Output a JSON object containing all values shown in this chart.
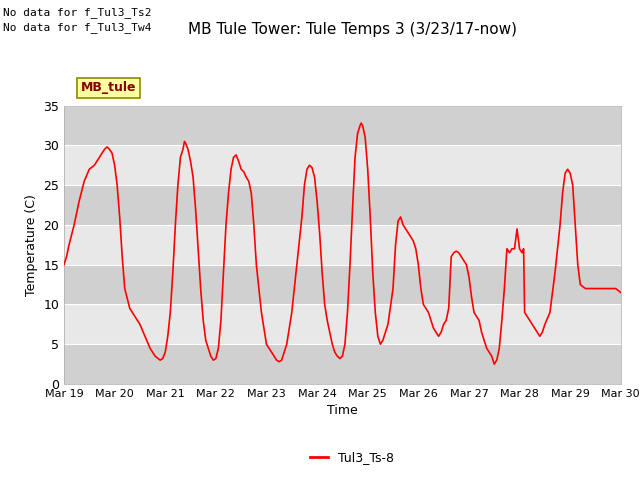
{
  "title": "MB Tule Tower: Tule Temps 3 (3/23/17-now)",
  "xlabel": "Time",
  "ylabel": "Temperature (C)",
  "no_data_text": [
    "No data for f_Tul3_Ts2",
    "No data for f_Tul3_Tw4"
  ],
  "legend_box_label": "MB_tule",
  "legend_line_label": "Tul3_Ts-8",
  "line_color": "#ff0000",
  "background_color": "#ffffff",
  "plot_bg_color": "#e8e8e8",
  "band_color": "#d0d0d0",
  "ylim": [
    0,
    35
  ],
  "yticks": [
    0,
    5,
    10,
    15,
    20,
    25,
    30,
    35
  ],
  "x_start": 19,
  "x_end": 30,
  "xtick_positions": [
    19,
    20,
    21,
    22,
    23,
    24,
    25,
    26,
    27,
    28,
    29,
    30
  ],
  "xtick_labels": [
    "Mar 19",
    "Mar 20",
    "Mar 21",
    "Mar 22",
    "Mar 23",
    "Mar 24",
    "Mar 25",
    "Mar 26",
    "Mar 27",
    "Mar 28",
    "Mar 29",
    "Mar 30"
  ],
  "time_series": [
    [
      19.0,
      15.0
    ],
    [
      19.05,
      16.0
    ],
    [
      19.1,
      17.5
    ],
    [
      19.2,
      20.0
    ],
    [
      19.3,
      23.0
    ],
    [
      19.4,
      25.5
    ],
    [
      19.5,
      27.0
    ],
    [
      19.6,
      27.5
    ],
    [
      19.65,
      28.0
    ],
    [
      19.7,
      28.5
    ],
    [
      19.75,
      29.0
    ],
    [
      19.8,
      29.5
    ],
    [
      19.85,
      29.8
    ],
    [
      19.9,
      29.5
    ],
    [
      19.95,
      29.0
    ],
    [
      20.0,
      27.5
    ],
    [
      20.05,
      25.0
    ],
    [
      20.1,
      21.0
    ],
    [
      20.15,
      16.0
    ],
    [
      20.2,
      12.0
    ],
    [
      20.3,
      9.5
    ],
    [
      20.4,
      8.5
    ],
    [
      20.5,
      7.5
    ],
    [
      20.6,
      6.0
    ],
    [
      20.7,
      4.5
    ],
    [
      20.8,
      3.5
    ],
    [
      20.9,
      3.0
    ],
    [
      20.95,
      3.2
    ],
    [
      21.0,
      4.0
    ],
    [
      21.05,
      6.0
    ],
    [
      21.1,
      9.0
    ],
    [
      21.15,
      14.0
    ],
    [
      21.2,
      20.0
    ],
    [
      21.25,
      25.0
    ],
    [
      21.3,
      28.5
    ],
    [
      21.35,
      29.5
    ],
    [
      21.38,
      30.5
    ],
    [
      21.4,
      30.3
    ],
    [
      21.45,
      29.5
    ],
    [
      21.5,
      28.0
    ],
    [
      21.55,
      26.0
    ],
    [
      21.6,
      22.0
    ],
    [
      21.65,
      17.0
    ],
    [
      21.7,
      12.0
    ],
    [
      21.75,
      8.0
    ],
    [
      21.8,
      5.5
    ],
    [
      21.85,
      4.5
    ],
    [
      21.9,
      3.5
    ],
    [
      21.95,
      3.0
    ],
    [
      22.0,
      3.2
    ],
    [
      22.05,
      4.5
    ],
    [
      22.1,
      8.0
    ],
    [
      22.15,
      14.0
    ],
    [
      22.2,
      20.0
    ],
    [
      22.25,
      24.0
    ],
    [
      22.3,
      27.0
    ],
    [
      22.35,
      28.5
    ],
    [
      22.4,
      28.8
    ],
    [
      22.45,
      28.0
    ],
    [
      22.5,
      27.0
    ],
    [
      22.55,
      26.7
    ],
    [
      22.6,
      26.0
    ],
    [
      22.65,
      25.5
    ],
    [
      22.7,
      24.0
    ],
    [
      22.75,
      20.0
    ],
    [
      22.8,
      15.0
    ],
    [
      22.9,
      9.0
    ],
    [
      23.0,
      5.0
    ],
    [
      23.05,
      4.5
    ],
    [
      23.1,
      4.0
    ],
    [
      23.15,
      3.5
    ],
    [
      23.2,
      3.0
    ],
    [
      23.25,
      2.8
    ],
    [
      23.3,
      3.0
    ],
    [
      23.4,
      5.0
    ],
    [
      23.5,
      9.0
    ],
    [
      23.6,
      15.0
    ],
    [
      23.7,
      21.0
    ],
    [
      23.75,
      25.0
    ],
    [
      23.8,
      27.0
    ],
    [
      23.85,
      27.5
    ],
    [
      23.9,
      27.2
    ],
    [
      23.95,
      26.0
    ],
    [
      24.0,
      23.0
    ],
    [
      24.05,
      19.0
    ],
    [
      24.1,
      14.0
    ],
    [
      24.15,
      10.0
    ],
    [
      24.2,
      8.0
    ],
    [
      24.25,
      6.5
    ],
    [
      24.3,
      5.0
    ],
    [
      24.35,
      4.0
    ],
    [
      24.4,
      3.5
    ],
    [
      24.45,
      3.2
    ],
    [
      24.5,
      3.5
    ],
    [
      24.55,
      5.0
    ],
    [
      24.6,
      9.0
    ],
    [
      24.65,
      15.0
    ],
    [
      24.7,
      22.0
    ],
    [
      24.75,
      28.5
    ],
    [
      24.8,
      31.5
    ],
    [
      24.85,
      32.5
    ],
    [
      24.87,
      32.8
    ],
    [
      24.9,
      32.5
    ],
    [
      24.95,
      31.0
    ],
    [
      25.0,
      27.0
    ],
    [
      25.05,
      21.0
    ],
    [
      25.1,
      14.0
    ],
    [
      25.15,
      9.0
    ],
    [
      25.2,
      6.0
    ],
    [
      25.25,
      5.0
    ],
    [
      25.3,
      5.5
    ],
    [
      25.4,
      7.5
    ],
    [
      25.5,
      12.0
    ],
    [
      25.55,
      17.5
    ],
    [
      25.6,
      20.5
    ],
    [
      25.65,
      21.0
    ],
    [
      25.7,
      20.0
    ],
    [
      25.75,
      19.5
    ],
    [
      25.8,
      19.0
    ],
    [
      25.85,
      18.5
    ],
    [
      25.9,
      18.0
    ],
    [
      25.95,
      17.0
    ],
    [
      26.0,
      15.0
    ],
    [
      26.05,
      12.0
    ],
    [
      26.1,
      10.0
    ],
    [
      26.15,
      9.5
    ],
    [
      26.2,
      9.0
    ],
    [
      26.25,
      8.0
    ],
    [
      26.3,
      7.0
    ],
    [
      26.35,
      6.5
    ],
    [
      26.4,
      6.0
    ],
    [
      26.45,
      6.5
    ],
    [
      26.5,
      7.5
    ],
    [
      26.55,
      8.0
    ],
    [
      26.6,
      9.5
    ],
    [
      26.65,
      16.0
    ],
    [
      26.7,
      16.5
    ],
    [
      26.75,
      16.7
    ],
    [
      26.8,
      16.5
    ],
    [
      26.85,
      16.0
    ],
    [
      26.9,
      15.5
    ],
    [
      26.95,
      15.0
    ],
    [
      27.0,
      13.5
    ],
    [
      27.05,
      11.0
    ],
    [
      27.1,
      9.0
    ],
    [
      27.15,
      8.5
    ],
    [
      27.2,
      8.0
    ],
    [
      27.25,
      6.5
    ],
    [
      27.3,
      5.5
    ],
    [
      27.35,
      4.5
    ],
    [
      27.4,
      4.0
    ],
    [
      27.45,
      3.5
    ],
    [
      27.5,
      2.5
    ],
    [
      27.55,
      3.0
    ],
    [
      27.6,
      4.5
    ],
    [
      27.65,
      8.0
    ],
    [
      27.7,
      12.0
    ],
    [
      27.75,
      17.0
    ],
    [
      27.8,
      16.5
    ],
    [
      27.85,
      17.0
    ],
    [
      27.9,
      17.0
    ],
    [
      27.95,
      19.5
    ],
    [
      28.0,
      17.0
    ],
    [
      28.05,
      16.5
    ],
    [
      28.08,
      17.0
    ],
    [
      28.1,
      9.0
    ],
    [
      28.15,
      8.5
    ],
    [
      28.2,
      8.0
    ],
    [
      28.25,
      7.5
    ],
    [
      28.3,
      7.0
    ],
    [
      28.35,
      6.5
    ],
    [
      28.4,
      6.0
    ],
    [
      28.45,
      6.5
    ],
    [
      28.5,
      7.5
    ],
    [
      28.6,
      9.0
    ],
    [
      28.7,
      14.0
    ],
    [
      28.8,
      20.0
    ],
    [
      28.85,
      24.0
    ],
    [
      28.9,
      26.5
    ],
    [
      28.95,
      27.0
    ],
    [
      29.0,
      26.5
    ],
    [
      29.05,
      25.0
    ],
    [
      29.1,
      20.0
    ],
    [
      29.15,
      15.0
    ],
    [
      29.2,
      12.5
    ],
    [
      29.3,
      12.0
    ],
    [
      29.4,
      12.0
    ],
    [
      29.5,
      12.0
    ],
    [
      29.6,
      12.0
    ],
    [
      29.7,
      12.0
    ],
    [
      29.8,
      12.0
    ],
    [
      29.9,
      12.0
    ],
    [
      30.0,
      11.5
    ]
  ]
}
